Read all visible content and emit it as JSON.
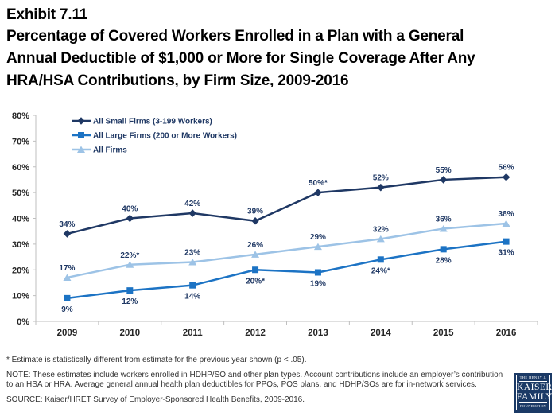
{
  "header": {
    "exhibit": "Exhibit 7.11",
    "title": "Percentage of Covered Workers Enrolled in a Plan with a General Annual Deductible of $1,000 or More for Single Coverage After Any HRA/HSA Contributions, by Firm Size, 2009-2016",
    "title_lines": [
      "Percentage of Covered Workers Enrolled in a Plan with a General",
      "Annual Deductible of $1,000 or More for Single Coverage After Any",
      "HRA/HSA Contributions, by Firm Size, 2009-2016"
    ]
  },
  "chart_data": {
    "type": "line",
    "title": "",
    "xlabel": "",
    "ylabel": "",
    "categories": [
      "2009",
      "2010",
      "2011",
      "2012",
      "2013",
      "2014",
      "2015",
      "2016"
    ],
    "series": [
      {
        "name": "All Small Firms (3-199 Workers)",
        "color": "#1F3864",
        "marker": "diamond",
        "values": [
          34,
          40,
          42,
          39,
          50,
          52,
          55,
          56
        ],
        "labels": [
          "34%",
          "40%",
          "42%",
          "39%",
          "50%*",
          "52%",
          "55%",
          "56%"
        ],
        "label_position": "above"
      },
      {
        "name": "All Large Firms (200 or More Workers)",
        "color": "#1C73C4",
        "marker": "square",
        "values": [
          9,
          12,
          14,
          20,
          19,
          24,
          28,
          31
        ],
        "labels": [
          "9%",
          "12%",
          "14%",
          "20%*",
          "19%",
          "24%*",
          "28%",
          "31%"
        ],
        "label_position": "below"
      },
      {
        "name": "All Firms",
        "color": "#9DC3E6",
        "marker": "triangle",
        "values": [
          17,
          22,
          23,
          26,
          29,
          32,
          36,
          38
        ],
        "labels": [
          "17%",
          "22%*",
          "23%",
          "26%",
          "29%",
          "32%",
          "36%",
          "38%"
        ],
        "label_position": "above"
      }
    ],
    "ylim": [
      0,
      80
    ],
    "ytick_step": 10,
    "ytick_labels": [
      "0%",
      "10%",
      "20%",
      "30%",
      "40%",
      "50%",
      "60%",
      "70%",
      "80%"
    ],
    "grid": false,
    "legend_position": "top-left",
    "axis_color": "#BFBFBF",
    "tick_label_color": "#262626",
    "data_label_color": "#1F3864",
    "legend_text_color": "#1F3864"
  },
  "footnotes": {
    "asterisk": "* Estimate is statistically different from estimate for the previous year shown (p < .05).",
    "note": "NOTE:  These estimates include workers enrolled in HDHP/SO and other plan types. Account contributions include an employer’s contribution to an HSA or HRA. Average general annual health plan deductibles for PPOs, POS plans, and HDHP/SOs are for in-network services.",
    "source": "SOURCE:  Kaiser/HRET Survey of Employer-Sponsored Health Benefits, 2009-2016."
  },
  "logo": {
    "line1": "THE HENRY J.",
    "line2": "KAISER",
    "line3": "FAMILY",
    "line4": "FOUNDATION"
  }
}
